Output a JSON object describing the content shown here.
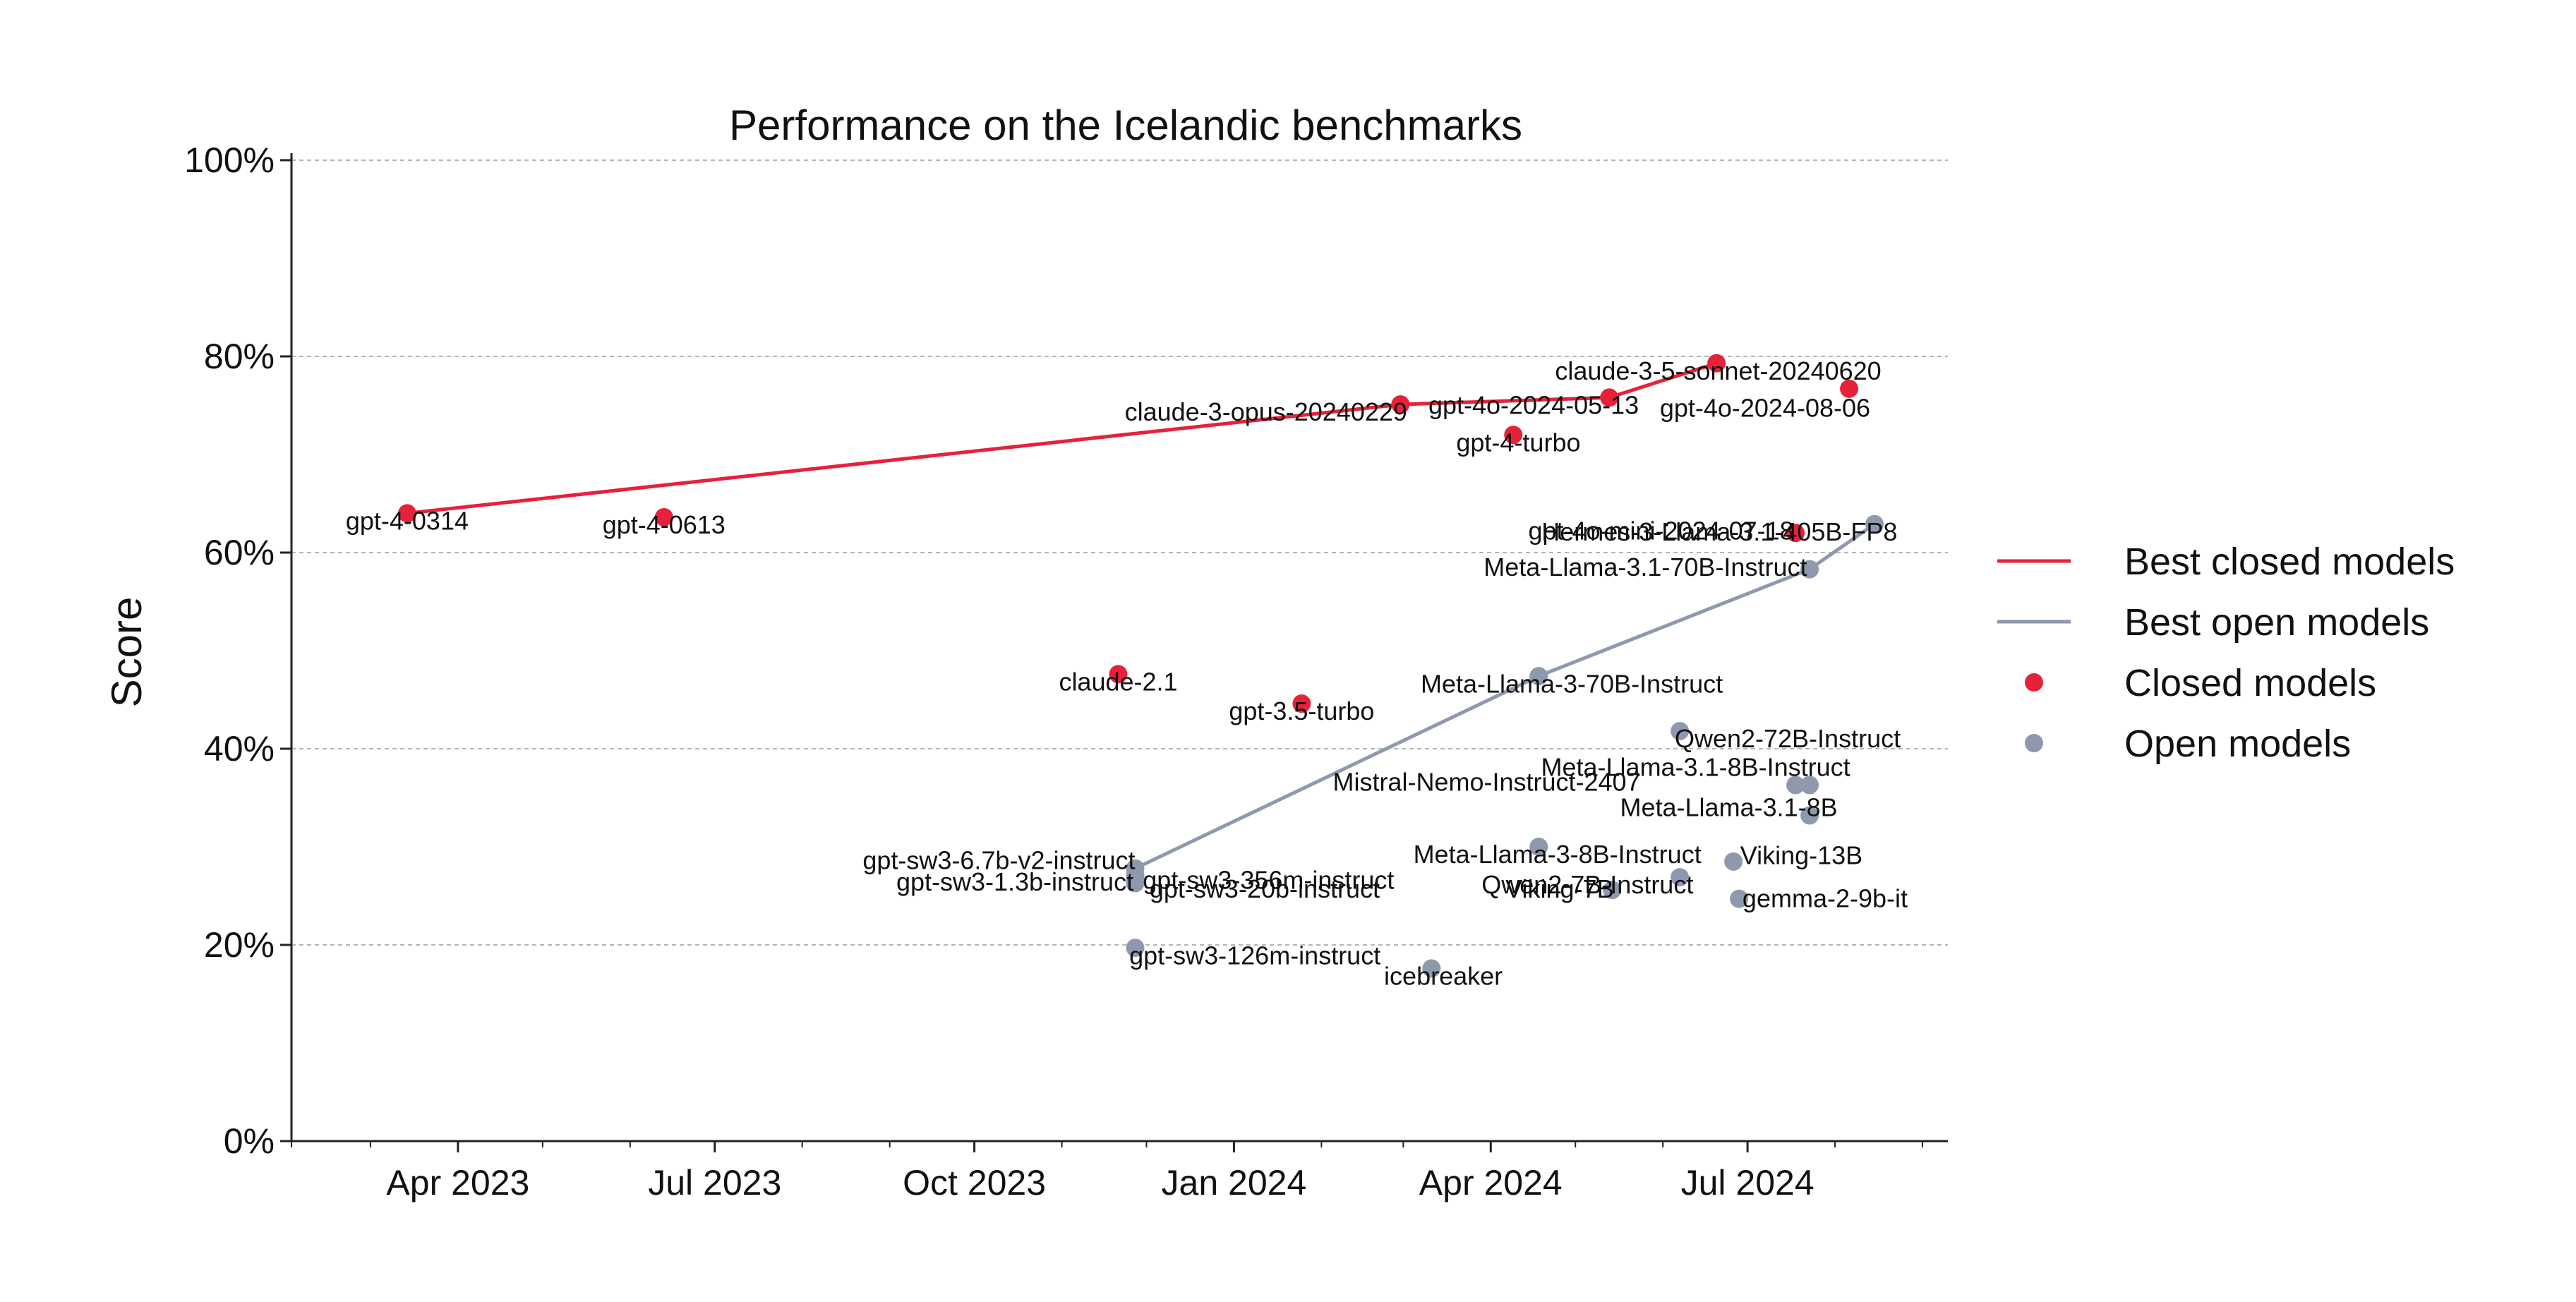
{
  "chart_data": {
    "type": "scatter",
    "title": "Performance on the Icelandic benchmarks",
    "xlabel": "",
    "ylabel": "Score",
    "ylim": [
      0,
      100
    ],
    "y_ticks": [
      0,
      20,
      40,
      60,
      80,
      100
    ],
    "y_tick_format": "%",
    "xlim": [
      "2023-02-01",
      "2024-09-10"
    ],
    "x_ticks": [
      {
        "date": "2023-04-01",
        "label": "Apr 2023"
      },
      {
        "date": "2023-07-01",
        "label": "Jul 2023"
      },
      {
        "date": "2023-10-01",
        "label": "Oct 2023"
      },
      {
        "date": "2024-01-01",
        "label": "Jan 2024"
      },
      {
        "date": "2024-04-01",
        "label": "Apr 2024"
      },
      {
        "date": "2024-07-01",
        "label": "Jul 2024"
      }
    ],
    "grid": "horizontal-dashed",
    "legend_position": "right",
    "colors": {
      "closed": "#e8213b",
      "open": "#8f99ad"
    },
    "legend": [
      {
        "label": "Best closed models",
        "kind": "line",
        "group": "closed"
      },
      {
        "label": "Best open models",
        "kind": "line",
        "group": "open"
      },
      {
        "label": "Closed models",
        "kind": "dot",
        "group": "closed"
      },
      {
        "label": "Open models",
        "kind": "dot",
        "group": "open"
      }
    ],
    "best_closed_line": [
      {
        "date": "2023-03-14",
        "y": 64
      },
      {
        "date": "2024-02-29",
        "y": 75.1
      },
      {
        "date": "2024-05-13",
        "y": 75.8
      },
      {
        "date": "2024-06-20",
        "y": 79.3
      }
    ],
    "best_open_line": [
      {
        "date": "2023-11-27",
        "y": 27.8
      },
      {
        "date": "2024-04-18",
        "y": 47.4
      },
      {
        "date": "2024-07-23",
        "y": 58.3
      },
      {
        "date": "2024-08-15",
        "y": 62.9
      }
    ],
    "closed_models": [
      {
        "name": "gpt-4-0314",
        "date": "2023-03-14",
        "y": 64.0,
        "anchor": "middle",
        "dx": 0,
        "dy": -0.8
      },
      {
        "name": "gpt-4-0613",
        "date": "2023-06-13",
        "y": 63.6,
        "anchor": "middle",
        "dx": 0,
        "dy": -0.8
      },
      {
        "name": "claude-2.1",
        "date": "2023-11-21",
        "y": 47.6,
        "anchor": "middle",
        "dx": 0,
        "dy": -0.8
      },
      {
        "name": "gpt-3.5-turbo",
        "date": "2024-01-25",
        "y": 44.6,
        "anchor": "middle",
        "dx": 0,
        "dy": -0.8
      },
      {
        "name": "claude-3-opus-20240229",
        "date": "2024-02-29",
        "y": 75.1,
        "anchor": "end",
        "dx": 0.8,
        "dy": -0.8
      },
      {
        "name": "gpt-4-turbo",
        "date": "2024-04-09",
        "y": 72.0,
        "anchor": "middle",
        "dx": 0.6,
        "dy": -0.8
      },
      {
        "name": "gpt-4o-2024-05-13",
        "date": "2024-05-13",
        "y": 75.8,
        "anchor": "end",
        "dx": 3.5,
        "dy": -0.8
      },
      {
        "name": "claude-3-5-sonnet-20240620",
        "date": "2024-06-20",
        "y": 79.3,
        "anchor": "middle",
        "dx": 0.2,
        "dy": -0.8
      },
      {
        "name": "gpt-4o-mini-2024-07-18",
        "date": "2024-07-18",
        "y": 62.0,
        "anchor": "end",
        "dx": -0.2,
        "dy": 0.2
      },
      {
        "name": "gpt-4o-2024-08-06",
        "date": "2024-08-06",
        "y": 76.7,
        "anchor": "end",
        "dx": 2.5,
        "dy": -2.0
      }
    ],
    "open_models": [
      {
        "name": "gpt-sw3-6.7b-v2-instruct",
        "date": "2023-11-27",
        "y": 27.8,
        "anchor": "end",
        "dx": 0,
        "dy": 0.8
      },
      {
        "name": "gpt-sw3-1.3b-instruct",
        "date": "2023-11-27",
        "y": 26.3,
        "anchor": "end",
        "dx": -0.2,
        "dy": 0.1
      },
      {
        "name": "gpt-sw3-20b-instruct",
        "date": "2023-11-27",
        "y": 27.1,
        "anchor": "start",
        "dx": 1.7,
        "dy": -1.4
      },
      {
        "name": "gpt-sw3-356m-instruct",
        "date": "2023-11-27",
        "y": 26.5,
        "anchor": "start",
        "dx": 0.9,
        "dy": 0.1
      },
      {
        "name": "gpt-sw3-126m-instruct",
        "date": "2023-11-27",
        "y": 19.7,
        "anchor": "start",
        "dx": -0.7,
        "dy": -0.8
      },
      {
        "name": "icebreaker",
        "date": "2024-03-11",
        "y": 17.6,
        "anchor": "middle",
        "dx": 1.4,
        "dy": -0.8
      },
      {
        "name": "Meta-Llama-3-70B-Instruct",
        "date": "2024-04-18",
        "y": 47.4,
        "anchor": "middle",
        "dx": 3.9,
        "dy": -0.8
      },
      {
        "name": "Meta-Llama-3-8B-Instruct",
        "date": "2024-04-18",
        "y": 30.0,
        "anchor": "middle",
        "dx": 2.2,
        "dy": -0.8
      },
      {
        "name": "Viking-7B",
        "date": "2024-05-14",
        "y": 25.6,
        "anchor": "end",
        "dx": 0.2,
        "dy": 0.1
      },
      {
        "name": "Qwen2-7B-Instruct",
        "date": "2024-06-07",
        "y": 26.9,
        "anchor": "end",
        "dx": 1.6,
        "dy": -0.8
      },
      {
        "name": "Qwen2-72B-Instruct",
        "date": "2024-06-07",
        "y": 41.8,
        "anchor": "start",
        "dx": -0.6,
        "dy": -0.8
      },
      {
        "name": "Mistral-Nemo-Instruct-2407",
        "date": "2024-07-18",
        "y": 36.3,
        "anchor": "end",
        "dx": -18.3,
        "dy": 0.3
      },
      {
        "name": "Meta-Llama-3.1-8B-Instruct",
        "date": "2024-07-23",
        "y": 36.3,
        "anchor": "end",
        "dx": 4.8,
        "dy": 1.8
      },
      {
        "name": "Meta-Llama-3.1-8B",
        "date": "2024-07-23",
        "y": 33.2,
        "anchor": "end",
        "dx": 3.3,
        "dy": 0.8
      },
      {
        "name": "Meta-Llama-3.1-70B-Instruct",
        "date": "2024-07-23",
        "y": 58.3,
        "anchor": "end",
        "dx": -0.3,
        "dy": 0.2
      },
      {
        "name": "Hermes-3-Llama-3.1-405B-FP8",
        "date": "2024-08-15",
        "y": 62.9,
        "anchor": "end",
        "dx": 2.7,
        "dy": -0.8
      },
      {
        "name": "Viking-13B",
        "date": "2024-06-26",
        "y": 28.5,
        "anchor": "start",
        "dx": 0.8,
        "dy": 0.6
      },
      {
        "name": "gemma-2-9b-it",
        "date": "2024-06-28",
        "y": 24.7,
        "anchor": "start",
        "dx": 0.4,
        "dy": 0
      }
    ]
  }
}
